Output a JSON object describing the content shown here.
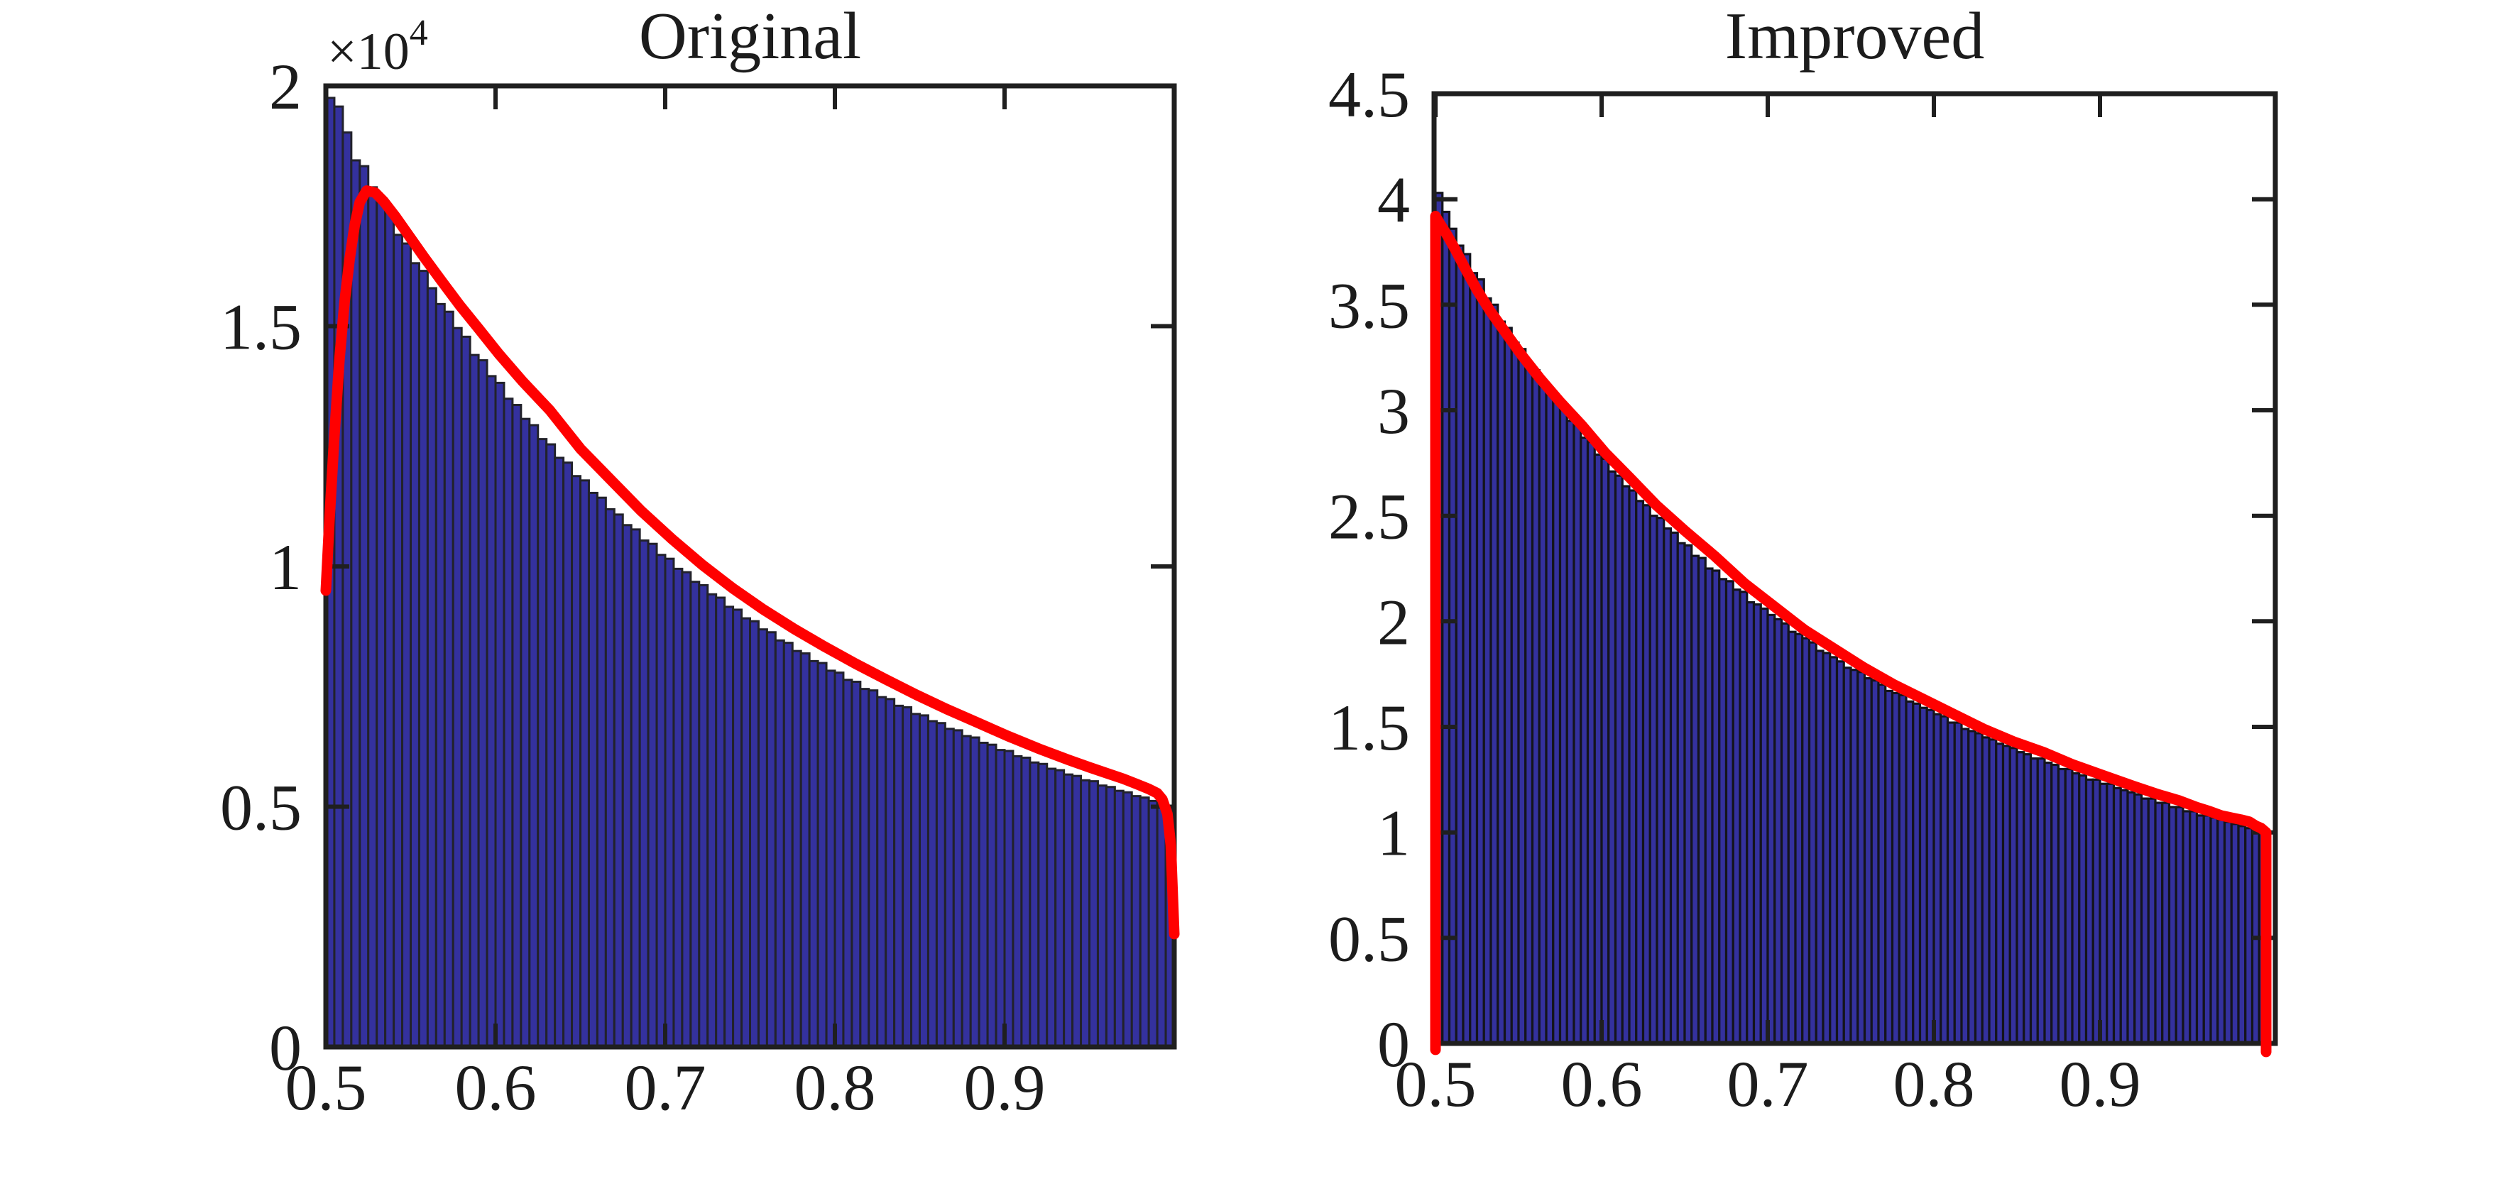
{
  "page": {
    "background": "#ffffff"
  },
  "chart_data": [
    {
      "id": "original",
      "type": "bar",
      "title": "Original",
      "bar_color": "#34319E",
      "bar_edge_color": "#22222B",
      "line_color": "#FF0000",
      "axis_color": "#1F1F1F",
      "xlim": [
        0.5,
        1.0
      ],
      "ylim": [
        0,
        20000
      ],
      "bin_start": 0.5,
      "bin_width": 0.005,
      "xticks": [
        0.5,
        0.6,
        0.7,
        0.8,
        0.9
      ],
      "xtick_labels": [
        "0.5",
        "0.6",
        "0.7",
        "0.8",
        "0.9"
      ],
      "yticks": [
        0,
        5000,
        10000,
        15000,
        20000
      ],
      "ytick_labels": [
        "0",
        "0.5",
        "1",
        "1.5",
        "2"
      ],
      "y_exponent_base": "×10",
      "y_exponent_power": "4",
      "values": [
        19750,
        19570,
        19030,
        18450,
        18330,
        17890,
        17650,
        17410,
        16900,
        16720,
        16310,
        16150,
        15790,
        15460,
        15300,
        14960,
        14780,
        14400,
        14290,
        13960,
        13820,
        13490,
        13360,
        13070,
        12940,
        12650,
        12540,
        12260,
        12160,
        11880,
        11790,
        11530,
        11430,
        11190,
        11080,
        10860,
        10770,
        10540,
        10470,
        10240,
        10160,
        9950,
        9880,
        9680,
        9610,
        9420,
        9350,
        9160,
        9100,
        8920,
        8860,
        8690,
        8630,
        8460,
        8410,
        8240,
        8190,
        8030,
        7990,
        7830,
        7790,
        7640,
        7600,
        7450,
        7420,
        7280,
        7240,
        7100,
        7070,
        6930,
        6900,
        6780,
        6740,
        6620,
        6590,
        6470,
        6440,
        6330,
        6290,
        6180,
        6160,
        6050,
        6020,
        5920,
        5890,
        5790,
        5760,
        5670,
        5640,
        5550,
        5530,
        5440,
        5410,
        5330,
        5300,
        5220,
        5190,
        5120,
        5080,
        5010
      ],
      "line_overlay": {
        "name": "kde-original",
        "x": [
          0.5,
          0.502,
          0.505,
          0.508,
          0.511,
          0.514,
          0.517,
          0.52,
          0.524,
          0.529,
          0.534,
          0.541,
          0.549,
          0.558,
          0.568,
          0.579,
          0.59,
          0.602,
          0.616,
          0.632,
          0.65,
          0.668,
          0.686,
          0.704,
          0.722,
          0.74,
          0.758,
          0.776,
          0.794,
          0.812,
          0.83,
          0.848,
          0.866,
          0.884,
          0.902,
          0.92,
          0.938,
          0.95,
          0.96,
          0.97,
          0.978,
          0.985,
          0.99,
          0.993,
          0.996,
          0.998,
          1.0
        ],
        "y": [
          9500,
          10900,
          12700,
          14300,
          15500,
          16400,
          17100,
          17580,
          17820,
          17780,
          17600,
          17280,
          16880,
          16430,
          15950,
          15430,
          14950,
          14420,
          13850,
          13250,
          12450,
          11800,
          11150,
          10570,
          10030,
          9540,
          9100,
          8700,
          8330,
          7980,
          7650,
          7330,
          7030,
          6750,
          6470,
          6210,
          5970,
          5820,
          5700,
          5580,
          5470,
          5370,
          5280,
          5150,
          4850,
          4200,
          2350
        ]
      }
    },
    {
      "id": "improved",
      "type": "bar",
      "title": "Improved",
      "bar_color": "#34319E",
      "bar_edge_color": "#14141C",
      "line_color": "#FF0000",
      "axis_color": "#1F1F1F",
      "xlim": [
        0.5,
        1.0055
      ],
      "ylim": [
        0,
        4.5
      ],
      "bin_start": 0.5,
      "bin_width": 0.0041667,
      "xticks": [
        0.5,
        0.6,
        0.7,
        0.8,
        0.9
      ],
      "xtick_labels": [
        "0.5",
        "0.6",
        "0.7",
        "0.8",
        "0.9"
      ],
      "yticks": [
        0,
        0.5,
        1,
        1.5,
        2,
        2.5,
        3,
        3.5,
        4,
        4.5
      ],
      "ytick_labels": [
        "0",
        "0.5",
        "1",
        "1.5",
        "2",
        "2.5",
        "3",
        "3.5",
        "4",
        "4.5"
      ],
      "y_exponent_base": "",
      "y_exponent_power": "",
      "values": [
        4.03,
        3.94,
        3.86,
        3.78,
        3.74,
        3.65,
        3.62,
        3.53,
        3.5,
        3.42,
        3.39,
        3.32,
        3.29,
        3.22,
        3.19,
        3.13,
        3.1,
        3.04,
        3.01,
        2.95,
        2.93,
        2.87,
        2.85,
        2.79,
        2.77,
        2.71,
        2.69,
        2.64,
        2.62,
        2.57,
        2.55,
        2.5,
        2.49,
        2.44,
        2.42,
        2.37,
        2.36,
        2.31,
        2.3,
        2.25,
        2.24,
        2.2,
        2.19,
        2.15,
        2.14,
        2.09,
        2.08,
        2.06,
        2.03,
        2.01,
        1.99,
        1.95,
        1.94,
        1.92,
        1.9,
        1.86,
        1.85,
        1.83,
        1.81,
        1.78,
        1.77,
        1.76,
        1.73,
        1.72,
        1.7,
        1.67,
        1.66,
        1.65,
        1.62,
        1.61,
        1.59,
        1.58,
        1.56,
        1.55,
        1.52,
        1.52,
        1.49,
        1.48,
        1.47,
        1.45,
        1.44,
        1.42,
        1.41,
        1.4,
        1.38,
        1.37,
        1.35,
        1.35,
        1.33,
        1.32,
        1.3,
        1.3,
        1.28,
        1.27,
        1.25,
        1.25,
        1.23,
        1.23,
        1.21,
        1.2,
        1.19,
        1.18,
        1.16,
        1.16,
        1.14,
        1.14,
        1.12,
        1.12,
        1.1,
        1.1,
        1.08,
        1.08,
        1.07,
        1.06,
        1.05,
        1.04,
        1.03,
        1.02,
        1.01,
        1.01
      ],
      "line_overlay": {
        "name": "kde-improved",
        "x": [
          0.5,
          0.5,
          0.503,
          0.507,
          0.512,
          0.518,
          0.525,
          0.533,
          0.542,
          0.552,
          0.563,
          0.575,
          0.588,
          0.602,
          0.617,
          0.633,
          0.65,
          0.668,
          0.686,
          0.704,
          0.722,
          0.74,
          0.758,
          0.776,
          0.794,
          0.812,
          0.83,
          0.848,
          0.866,
          0.884,
          0.902,
          0.92,
          0.935,
          0.948,
          0.958,
          0.966,
          0.973,
          0.979,
          0.985,
          0.99,
          0.994,
          0.997,
          1.0,
          1.0
        ],
        "y": [
          -0.03,
          3.92,
          3.88,
          3.83,
          3.76,
          3.67,
          3.57,
          3.47,
          3.37,
          3.26,
          3.15,
          3.04,
          2.93,
          2.8,
          2.68,
          2.55,
          2.43,
          2.31,
          2.18,
          2.07,
          1.96,
          1.87,
          1.78,
          1.7,
          1.63,
          1.56,
          1.49,
          1.43,
          1.38,
          1.32,
          1.27,
          1.22,
          1.18,
          1.15,
          1.12,
          1.1,
          1.08,
          1.07,
          1.06,
          1.05,
          1.03,
          1.02,
          1.0,
          -0.04
        ]
      }
    }
  ]
}
